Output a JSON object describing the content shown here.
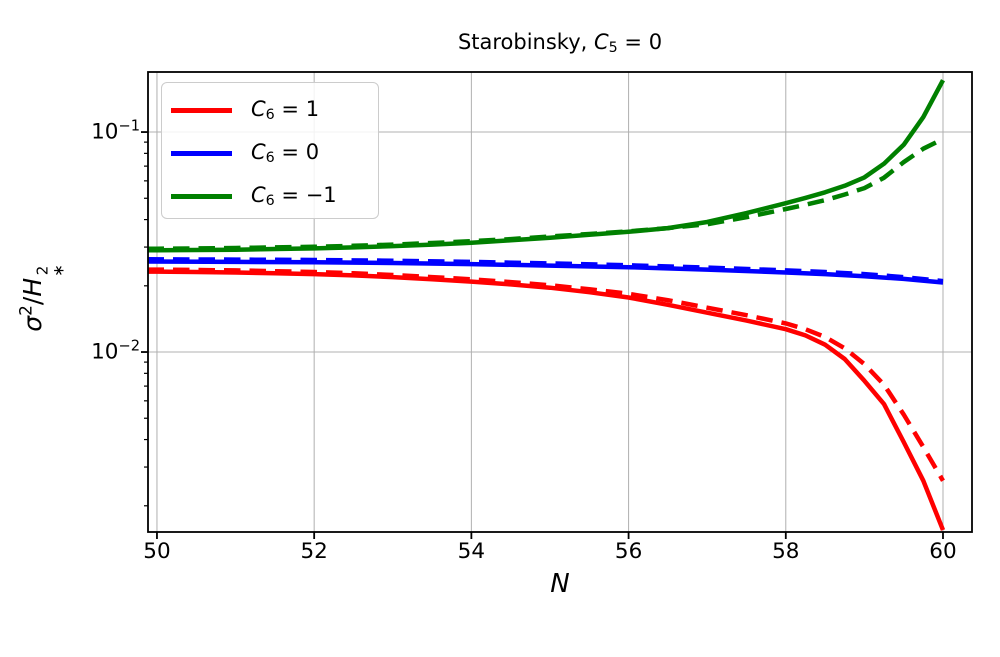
{
  "chart_data": {
    "type": "line",
    "title": "Starobinsky, C_5 = 0",
    "title_segments": [
      {
        "t": "Starobinsky, "
      },
      {
        "t": "C",
        "i": true
      },
      {
        "t": "5",
        "sub": true
      },
      {
        "t": " = 0"
      }
    ],
    "xlabel": "N",
    "xlabel_segments": [
      {
        "t": "N",
        "i": true
      }
    ],
    "ylabel": "sigma^2 / H_*^2",
    "ylabel_segments": [
      {
        "t": "σ",
        "i": true
      },
      {
        "t": "2",
        "sup": true
      },
      {
        "t": "/"
      },
      {
        "t": "H",
        "i": true
      },
      {
        "stack": {
          "top": "2",
          "bottom": "∗"
        }
      }
    ],
    "x_axis": {
      "lim": [
        49.886,
        60.369
      ],
      "scale": "linear",
      "ticks": [
        50,
        52,
        54,
        56,
        58,
        60
      ],
      "tick_labels": [
        "50",
        "52",
        "54",
        "56",
        "58",
        "60"
      ]
    },
    "y_axis": {
      "lim": [
        0.00152,
        0.1875
      ],
      "scale": "log",
      "ticks": [
        0.1,
        0.01
      ],
      "tick_label_segments": [
        [
          {
            "t": "10"
          },
          {
            "t": "−1",
            "sup": true
          }
        ],
        [
          {
            "t": "10"
          },
          {
            "t": "−2",
            "sup": true
          }
        ]
      ]
    },
    "grid": {
      "on": true,
      "color": "#b0b0b0"
    },
    "legend": {
      "position": "upper left",
      "entries": [
        {
          "label": "C_6 = 1",
          "color": "#ff0000",
          "segments": [
            {
              "t": "C",
              "i": true
            },
            {
              "t": "6",
              "sub": true
            },
            {
              "t": " = 1"
            }
          ]
        },
        {
          "label": "C_6 = 0",
          "color": "#0000ff",
          "segments": [
            {
              "t": "C",
              "i": true
            },
            {
              "t": "6",
              "sub": true
            },
            {
              "t": " = 0"
            }
          ]
        },
        {
          "label": "C_6 = −1",
          "color": "#008000",
          "segments": [
            {
              "t": "C",
              "i": true
            },
            {
              "t": "6",
              "sub": true
            },
            {
              "t": " = −1"
            }
          ]
        }
      ]
    },
    "series": [
      {
        "name": "C6=1 solid",
        "color": "#ff0000",
        "style": "solid",
        "points": [
          [
            49.88,
            0.0232
          ],
          [
            50,
            0.0232
          ],
          [
            50.5,
            0.0231
          ],
          [
            51,
            0.023
          ],
          [
            51.5,
            0.0228
          ],
          [
            52,
            0.0226
          ],
          [
            52.5,
            0.0223
          ],
          [
            53,
            0.0219
          ],
          [
            53.5,
            0.0214
          ],
          [
            54,
            0.0209
          ],
          [
            54.5,
            0.0203
          ],
          [
            55,
            0.0196
          ],
          [
            55.5,
            0.0187
          ],
          [
            56,
            0.0177
          ],
          [
            56.5,
            0.0164
          ],
          [
            57,
            0.0151
          ],
          [
            57.5,
            0.0139
          ],
          [
            58,
            0.0127
          ],
          [
            58.25,
            0.0119
          ],
          [
            58.5,
            0.0108
          ],
          [
            58.75,
            0.0093
          ],
          [
            59,
            0.0074
          ],
          [
            59.25,
            0.0058
          ],
          [
            59.5,
            0.0039
          ],
          [
            59.75,
            0.0026
          ],
          [
            60,
            0.00155
          ]
        ]
      },
      {
        "name": "C6=1 dashed",
        "color": "#ff0000",
        "style": "dashed",
        "points": [
          [
            49.88,
            0.0237
          ],
          [
            50,
            0.0237
          ],
          [
            50.5,
            0.0236
          ],
          [
            51,
            0.0235
          ],
          [
            51.5,
            0.0233
          ],
          [
            52,
            0.0231
          ],
          [
            52.5,
            0.0228
          ],
          [
            53,
            0.0224
          ],
          [
            53.5,
            0.0219
          ],
          [
            54,
            0.0214
          ],
          [
            54.5,
            0.0208
          ],
          [
            55,
            0.0201
          ],
          [
            55.5,
            0.0193
          ],
          [
            56,
            0.0184
          ],
          [
            56.5,
            0.0172
          ],
          [
            57,
            0.0159
          ],
          [
            57.5,
            0.0147
          ],
          [
            58,
            0.0135
          ],
          [
            58.25,
            0.0127
          ],
          [
            58.5,
            0.0117
          ],
          [
            58.75,
            0.0104
          ],
          [
            59,
            0.0088
          ],
          [
            59.25,
            0.0071
          ],
          [
            59.5,
            0.0052
          ],
          [
            59.75,
            0.0037
          ],
          [
            60,
            0.0026
          ]
        ]
      },
      {
        "name": "C6=0 solid",
        "color": "#0000ff",
        "style": "solid",
        "points": [
          [
            49.88,
            0.0258
          ],
          [
            51,
            0.0257
          ],
          [
            52,
            0.0256
          ],
          [
            53,
            0.0254
          ],
          [
            54,
            0.0251
          ],
          [
            55,
            0.0247
          ],
          [
            56,
            0.0243
          ],
          [
            57,
            0.0237
          ],
          [
            58,
            0.023
          ],
          [
            58.5,
            0.0226
          ],
          [
            59,
            0.0221
          ],
          [
            59.5,
            0.0215
          ],
          [
            60,
            0.0207
          ]
        ]
      },
      {
        "name": "C6=0 dashed",
        "color": "#0000ff",
        "style": "dashed",
        "points": [
          [
            49.88,
            0.0264
          ],
          [
            51,
            0.0263
          ],
          [
            52,
            0.0262
          ],
          [
            53,
            0.026
          ],
          [
            54,
            0.0257
          ],
          [
            55,
            0.0253
          ],
          [
            56,
            0.0248
          ],
          [
            57,
            0.0242
          ],
          [
            58,
            0.0235
          ],
          [
            58.5,
            0.0231
          ],
          [
            59,
            0.0226
          ],
          [
            59.5,
            0.0219
          ],
          [
            60,
            0.021
          ]
        ]
      },
      {
        "name": "C6=-1 solid",
        "color": "#008000",
        "style": "solid",
        "points": [
          [
            49.88,
            0.029
          ],
          [
            50,
            0.029
          ],
          [
            50.5,
            0.0291
          ],
          [
            51,
            0.0292
          ],
          [
            51.5,
            0.0294
          ],
          [
            52,
            0.0296
          ],
          [
            52.5,
            0.0299
          ],
          [
            53,
            0.0303
          ],
          [
            53.5,
            0.0308
          ],
          [
            54,
            0.0314
          ],
          [
            54.5,
            0.0322
          ],
          [
            55,
            0.0331
          ],
          [
            55.5,
            0.0341
          ],
          [
            56,
            0.0352
          ],
          [
            56.5,
            0.0366
          ],
          [
            57,
            0.039
          ],
          [
            57.5,
            0.0428
          ],
          [
            58,
            0.0475
          ],
          [
            58.25,
            0.0502
          ],
          [
            58.5,
            0.0532
          ],
          [
            58.75,
            0.057
          ],
          [
            59,
            0.0622
          ],
          [
            59.25,
            0.0718
          ],
          [
            59.5,
            0.0875
          ],
          [
            59.75,
            0.117
          ],
          [
            60,
            0.172
          ]
        ]
      },
      {
        "name": "C6=-1 dashed",
        "color": "#008000",
        "style": "dashed",
        "points": [
          [
            49.88,
            0.0295
          ],
          [
            50,
            0.0295
          ],
          [
            50.5,
            0.0296
          ],
          [
            51,
            0.0297
          ],
          [
            51.5,
            0.0299
          ],
          [
            52,
            0.0301
          ],
          [
            52.5,
            0.0304
          ],
          [
            53,
            0.0308
          ],
          [
            53.5,
            0.0313
          ],
          [
            54,
            0.0319
          ],
          [
            54.5,
            0.0326
          ],
          [
            55,
            0.0335
          ],
          [
            55.5,
            0.0344
          ],
          [
            56,
            0.0354
          ],
          [
            56.5,
            0.0366
          ],
          [
            57,
            0.0381
          ],
          [
            57.5,
            0.041
          ],
          [
            58,
            0.0447
          ],
          [
            58.25,
            0.0467
          ],
          [
            58.5,
            0.049
          ],
          [
            58.75,
            0.052
          ],
          [
            59,
            0.0556
          ],
          [
            59.25,
            0.062
          ],
          [
            59.5,
            0.073
          ],
          [
            59.75,
            0.084
          ],
          [
            60,
            0.093
          ]
        ]
      }
    ]
  }
}
